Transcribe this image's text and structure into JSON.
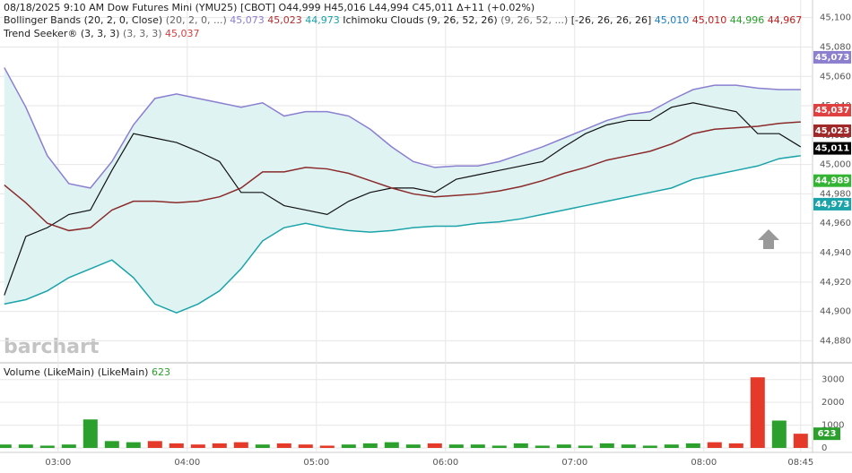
{
  "chart_data": {
    "type": "line",
    "header": "08/18/2025  9:10 AM Dow Futures Mini (YMU25) [CBOT] O44,999 H45,016 L44,994 C45,011 Δ+11 (+0.02%)",
    "studies": [
      {
        "name": "Bollinger Bands (20, 2, 0, Close)",
        "params": "(20, 2, 0, ...)",
        "readings": [
          {
            "label": "45,073",
            "color": "#8b7fd0"
          },
          {
            "label": "45,023",
            "color": "#b03030"
          },
          {
            "label": "44,973",
            "color": "#1aa3a8"
          }
        ]
      },
      {
        "name": "Ichimoku Clouds (9, 26, 52, 26)",
        "params": "(9, 26, 52, ...)",
        "readings": [
          {
            "label": "[-26, 26, 26, 26]",
            "color": "#222222"
          },
          {
            "label": "45,010",
            "color": "#1a7fc0"
          },
          {
            "label": "45,010",
            "color": "#c02020"
          },
          {
            "label": "44,996",
            "color": "#2aa02a"
          },
          {
            "label": "44,967",
            "color": "#c02020"
          }
        ]
      },
      {
        "name": "Trend Seeker® (3, 3, 3)",
        "params": "(3, 3, 3)",
        "readings": [
          {
            "label": "45,037",
            "color": "#d04040"
          }
        ]
      }
    ],
    "watermark": "barchart",
    "x": [
      "02:35",
      "02:45",
      "02:55",
      "03:05",
      "03:15",
      "03:25",
      "03:35",
      "03:45",
      "03:55",
      "04:05",
      "04:15",
      "04:25",
      "04:35",
      "04:45",
      "04:55",
      "05:05",
      "05:15",
      "05:25",
      "05:35",
      "05:45",
      "05:55",
      "06:05",
      "06:15",
      "06:25",
      "06:35",
      "06:45",
      "06:55",
      "07:05",
      "07:15",
      "07:25",
      "07:35",
      "07:45",
      "07:55",
      "08:05",
      "08:15",
      "08:25",
      "08:35",
      "08:45"
    ],
    "xticks": [
      "03:00",
      "04:00",
      "05:00",
      "06:00",
      "07:00",
      "08:00",
      "08:45"
    ],
    "ylim": [
      44865,
      45112
    ],
    "yticks": [
      {
        "value": 44880,
        "label": "44,880"
      },
      {
        "value": 44900,
        "label": "44,900"
      },
      {
        "value": 44920,
        "label": "44,920"
      },
      {
        "value": 44940,
        "label": "44,940"
      },
      {
        "value": 44960,
        "label": "44,960"
      },
      {
        "value": 44980,
        "label": "44,980"
      },
      {
        "value": 45000,
        "label": "45,000"
      },
      {
        "value": 45020,
        "label": "45,020"
      },
      {
        "value": 45040,
        "label": "45,040"
      },
      {
        "value": 45060,
        "label": "45,060"
      },
      {
        "value": 45080,
        "label": "45,080"
      },
      {
        "value": 45100,
        "label": "45,100"
      }
    ],
    "band_fill": "#dff3f3",
    "series": [
      {
        "name": "Close",
        "color": "#111111",
        "values": [
          44911,
          44951,
          44957,
          44966,
          44969,
          44996,
          45021,
          45018,
          45015,
          45009,
          45002,
          44981,
          44981,
          44972,
          44969,
          44966,
          44975,
          44981,
          44984,
          44984,
          44981,
          44990,
          44993,
          44996,
          44999,
          45002,
          45012,
          45021,
          45027,
          45030,
          45030,
          45039,
          45042,
          45039,
          45036,
          45021,
          45021,
          45012
        ]
      },
      {
        "name": "Upper",
        "color": "#8b7fd0",
        "values": [
          45066,
          45039,
          45006,
          44987,
          44984,
          45002,
          45027,
          45045,
          45048,
          45045,
          45042,
          45039,
          45042,
          45033,
          45036,
          45036,
          45033,
          45024,
          45012,
          45002,
          44998,
          44999,
          44999,
          45002,
          45007,
          45012,
          45018,
          45024,
          45030,
          45034,
          45036,
          45044,
          45051,
          45054,
          45054,
          45052,
          45051,
          45051
        ]
      },
      {
        "name": "Middle",
        "color": "#8b2a2a",
        "values": [
          44986,
          44974,
          44960,
          44955,
          44957,
          44969,
          44975,
          44975,
          44974,
          44975,
          44978,
          44984,
          44995,
          44995,
          44998,
          44997,
          44994,
          44989,
          44984,
          44980,
          44978,
          44979,
          44980,
          44982,
          44985,
          44989,
          44994,
          44998,
          45003,
          45006,
          45009,
          45014,
          45021,
          45024,
          45025,
          45026,
          45028,
          45029
        ]
      },
      {
        "name": "Lower",
        "color": "#1aa3a8",
        "values": [
          44905,
          44908,
          44914,
          44923,
          44929,
          44935,
          44923,
          44905,
          44899,
          44905,
          44914,
          44929,
          44948,
          44957,
          44960,
          44957,
          44955,
          44954,
          44955,
          44957,
          44958,
          44958,
          44960,
          44961,
          44963,
          44966,
          44969,
          44972,
          44975,
          44978,
          44981,
          44984,
          44990,
          44993,
          44996,
          44999,
          45004,
          45006
        ]
      }
    ],
    "price_tags": [
      {
        "value": 45073,
        "label": "45,073",
        "color": "#8b7fd0"
      },
      {
        "value": 45037,
        "label": "45,037",
        "color": "#e04040"
      },
      {
        "value": 45023,
        "label": "45,023",
        "color": "#a02828"
      },
      {
        "value": 45011,
        "label": "45,011",
        "color": "#000000"
      },
      {
        "value": 44989,
        "label": "44,989",
        "color": "#33b533"
      },
      {
        "value": 44973,
        "label": "44,973",
        "color": "#1aa3a8"
      }
    ],
    "volume": {
      "title": "Volume (LikeMain)",
      "params": "(LikeMain)",
      "reading": "623",
      "ylim": [
        0,
        3500
      ],
      "yticks": [
        0,
        1000,
        2000,
        3000
      ],
      "up_color": "#2ca02c",
      "down_color": "#e53a2a",
      "values": [
        150,
        150,
        100,
        150,
        1250,
        300,
        250,
        300,
        200,
        150,
        200,
        250,
        150,
        200,
        150,
        100,
        150,
        200,
        250,
        150,
        200,
        150,
        150,
        100,
        200,
        100,
        150,
        100,
        200,
        150,
        100,
        150,
        200,
        250,
        200,
        3100,
        1200,
        623
      ]
    }
  }
}
